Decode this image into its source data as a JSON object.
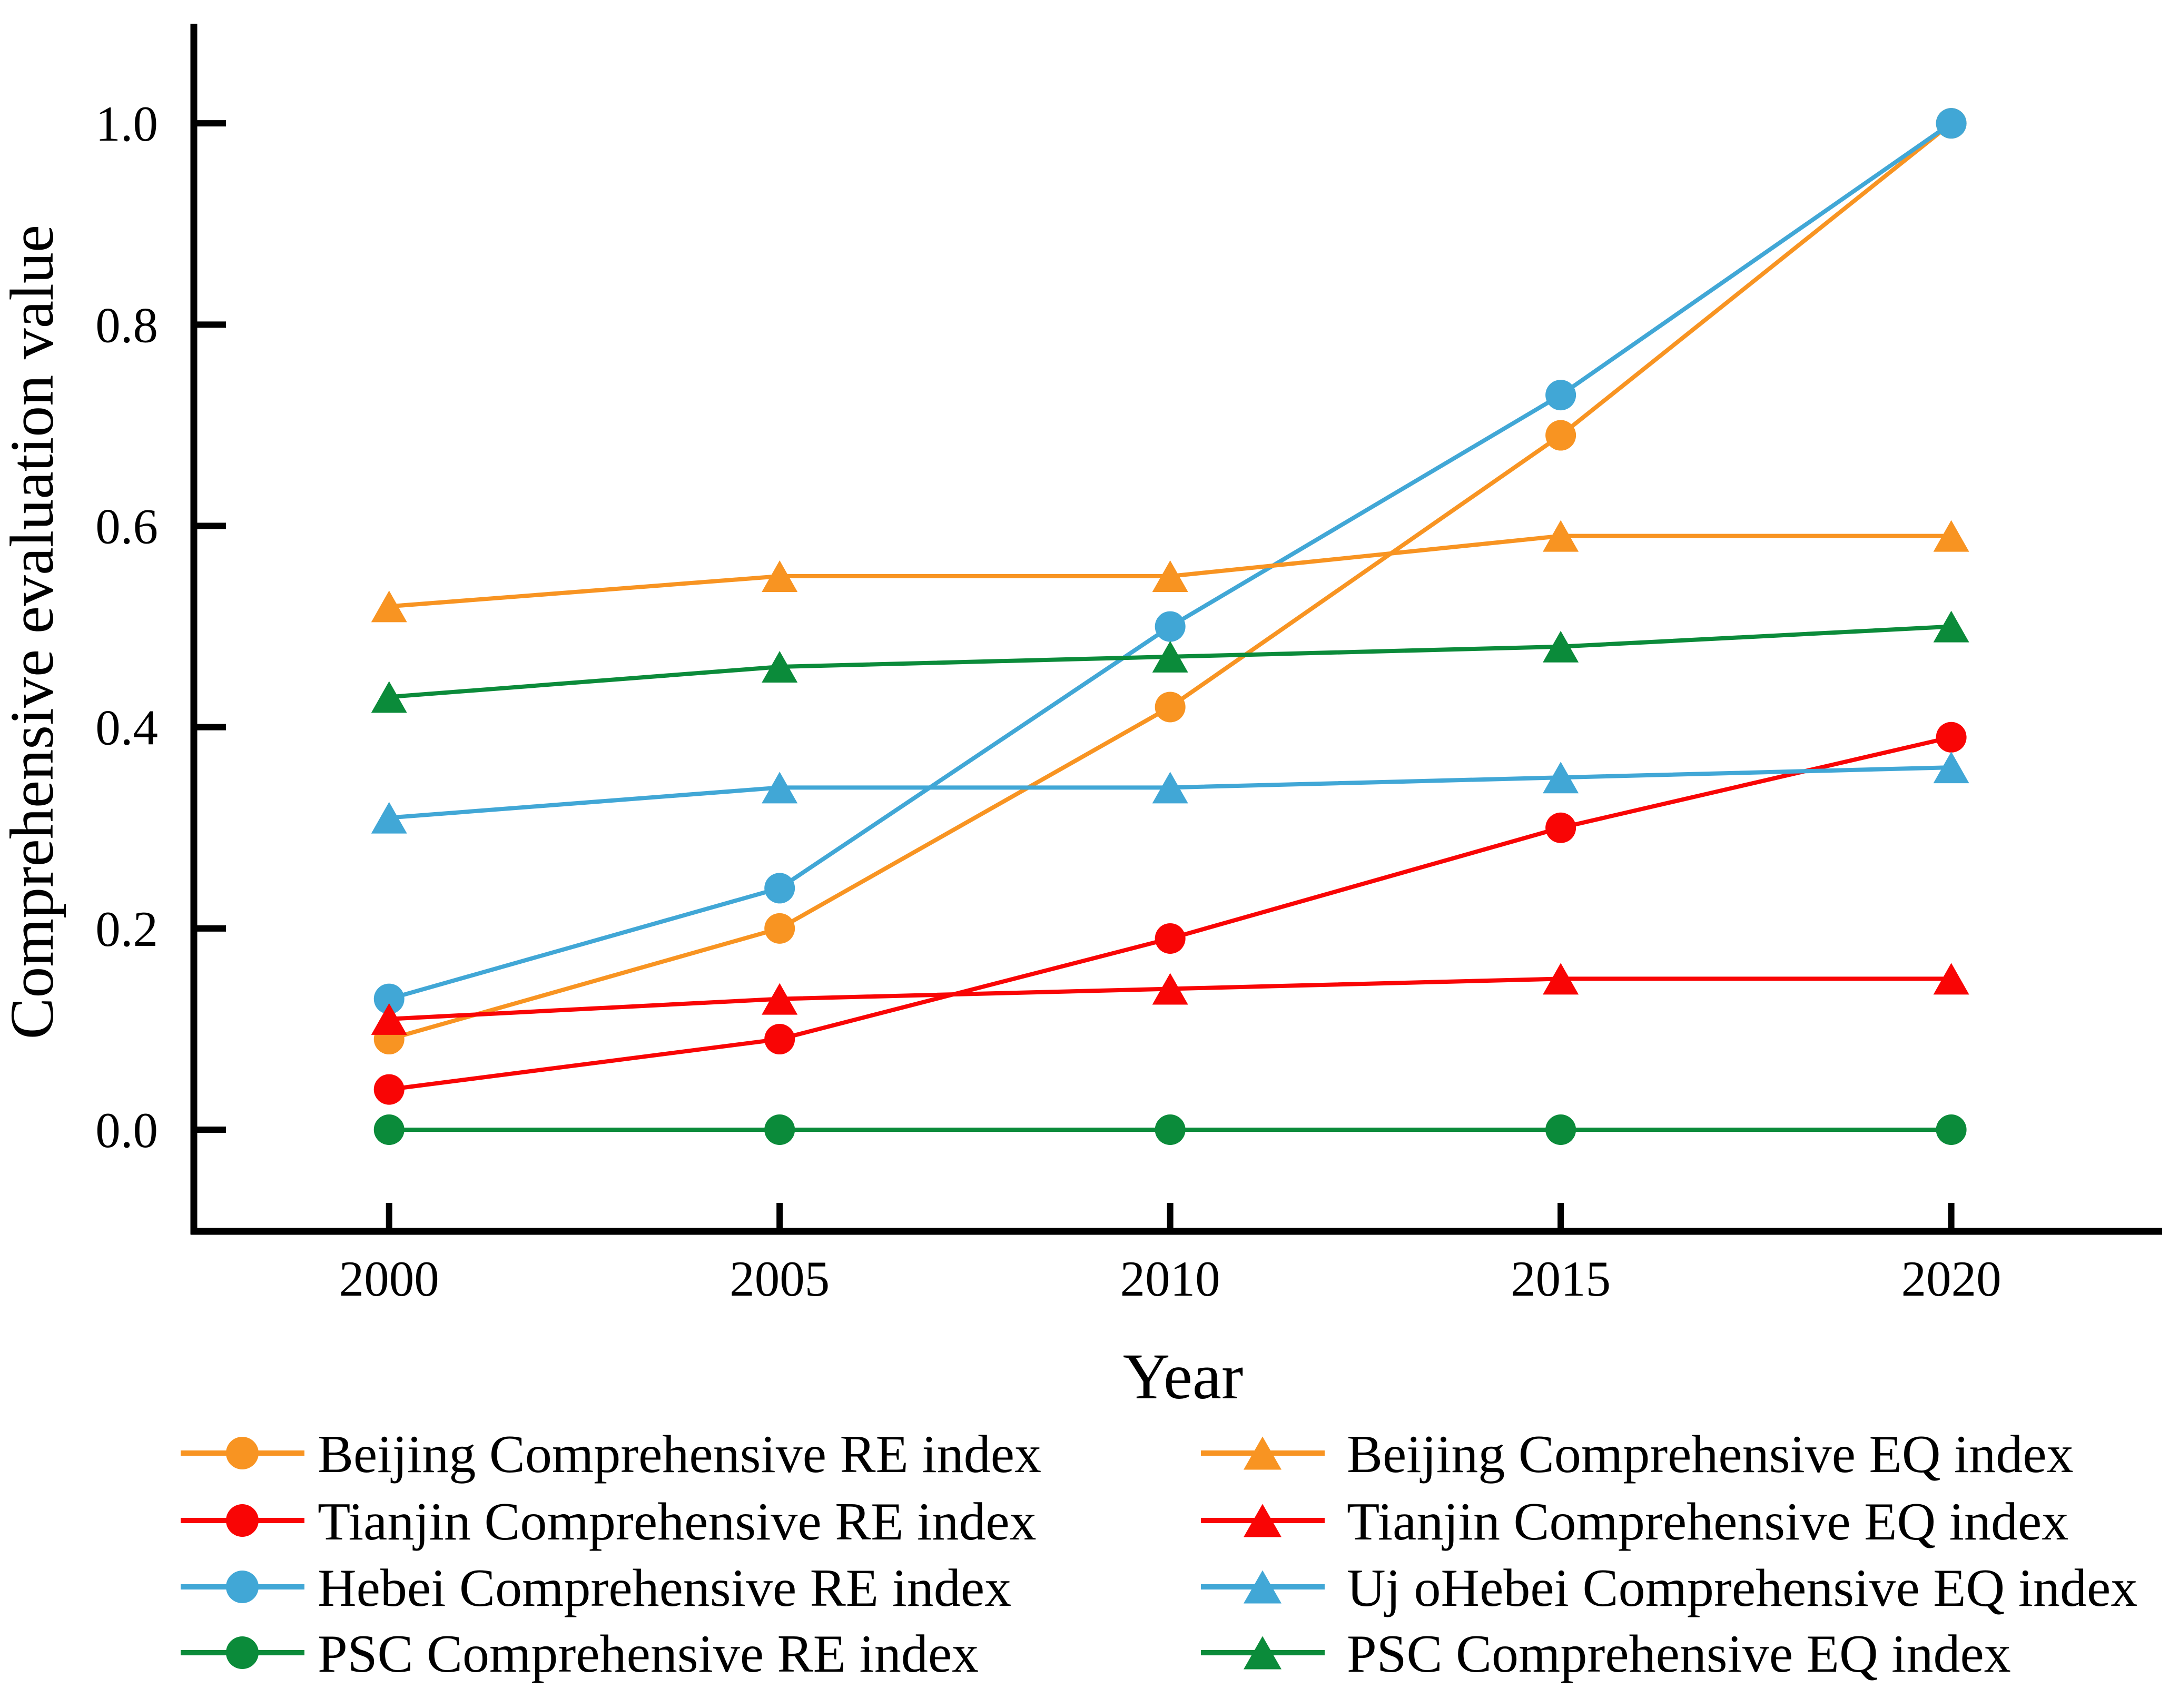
{
  "figure": {
    "background": "#ffffff",
    "text_color": "#000000",
    "axis_color": "#000000"
  },
  "chart_data": {
    "type": "line",
    "title": "",
    "xlabel": "Year",
    "ylabel": "Comprehensive evaluation value",
    "x": [
      2000,
      2005,
      2010,
      2015,
      2020
    ],
    "xtick_labels": [
      "2000",
      "2005",
      "2010",
      "2015",
      "2020"
    ],
    "xlim": [
      1997.5,
      2022.7
    ],
    "ylim": [
      -0.101,
      1.099
    ],
    "ytick_values": [
      0.0,
      0.2,
      0.4,
      0.6,
      0.8,
      1.0
    ],
    "ytick_labels": [
      "0.0",
      "0.2",
      "0.4",
      "0.6",
      "0.8",
      "1.0"
    ],
    "grid": false,
    "legend_position": "bottom, two columns",
    "series": [
      {
        "name": "Beijing Comprehensive RE index",
        "marker": "circle",
        "color": "#F89422",
        "values": [
          0.09,
          0.2,
          0.42,
          0.69,
          1.0
        ]
      },
      {
        "name": "Tianjin Comprehensive RE index",
        "marker": "circle",
        "color": "#F90505",
        "values": [
          0.04,
          0.09,
          0.19,
          0.3,
          0.39
        ]
      },
      {
        "name": "Hebei Comprehensive RE index",
        "marker": "circle",
        "color": "#41A7D6",
        "values": [
          0.13,
          0.24,
          0.5,
          0.73,
          1.0
        ]
      },
      {
        "name": "PSC Comprehensive RE index",
        "marker": "circle",
        "color": "#0B8B3A",
        "values": [
          0.0,
          0.0,
          0.0,
          0.0,
          0.0
        ]
      },
      {
        "name": "Beijing Comprehensive EQ index",
        "marker": "triangle",
        "color": "#F89422",
        "values": [
          0.52,
          0.55,
          0.55,
          0.59,
          0.59
        ]
      },
      {
        "name": "Tianjin Comprehensive EQ index",
        "marker": "triangle",
        "color": "#F90505",
        "values": [
          0.11,
          0.13,
          0.14,
          0.15,
          0.15
        ]
      },
      {
        "name": "Uj oHebei Comprehensive EQ index",
        "marker": "triangle",
        "color": "#41A7D6",
        "values": [
          0.31,
          0.34,
          0.34,
          0.35,
          0.36
        ]
      },
      {
        "name": "PSC Comprehensive EQ index",
        "marker": "triangle",
        "color": "#0B8B3A",
        "values": [
          0.43,
          0.46,
          0.47,
          0.48,
          0.5
        ]
      }
    ],
    "legend_columns": [
      [
        0,
        1,
        2,
        3
      ],
      [
        4,
        5,
        6,
        7
      ]
    ]
  }
}
